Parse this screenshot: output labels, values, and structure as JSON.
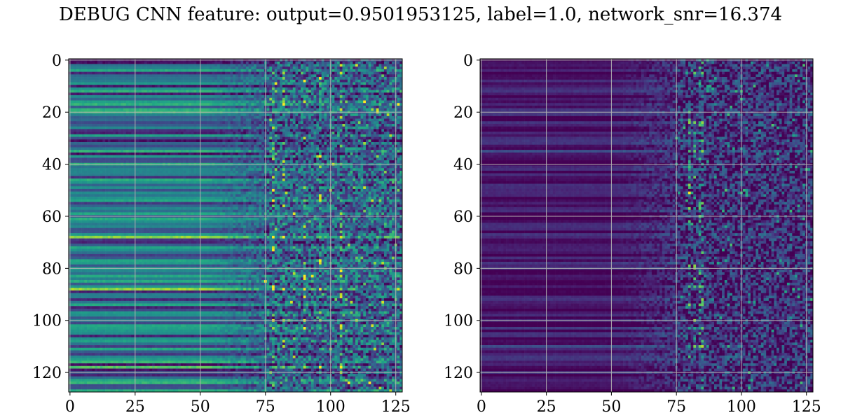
{
  "figure": {
    "title": "DEBUG CNN feature: output=0.9501953125, label=1.0, network_snr=16.374"
  },
  "chart_data": [
    {
      "type": "heatmap",
      "colormap": "viridis",
      "rows": 128,
      "cols": 128,
      "xlim": [
        -0.5,
        127.5
      ],
      "ylim": [
        127.5,
        -0.5
      ],
      "xticks": [
        0,
        25,
        50,
        75,
        100,
        125
      ],
      "yticks": [
        0,
        20,
        40,
        60,
        80,
        100,
        120
      ],
      "grid": true,
      "grid_color": "#b0b0b0",
      "structure": {
        "smooth_col_end": 50,
        "transition_col_end": 75,
        "base_level_left": 0.35,
        "base_level_right": 0.3,
        "row_contrast": 0.35,
        "noise_right": 0.35,
        "bright_rows": [
          16,
          54,
          63,
          68,
          88,
          100,
          103,
          118
        ],
        "bright_cols": [
          78,
          82,
          90,
          96,
          104
        ]
      }
    },
    {
      "type": "heatmap",
      "colormap": "viridis",
      "rows": 128,
      "cols": 128,
      "xlim": [
        -0.5,
        127.5
      ],
      "ylim": [
        127.5,
        -0.5
      ],
      "xticks": [
        0,
        25,
        50,
        75,
        100,
        125
      ],
      "yticks": [
        0,
        20,
        40,
        60,
        80,
        100,
        120
      ],
      "grid": true,
      "grid_color": "#b0b0b0",
      "structure": {
        "smooth_col_end": 50,
        "transition_col_end": 75,
        "base_level_left": 0.05,
        "base_level_right": 0.12,
        "row_contrast": 0.12,
        "noise_right": 0.3,
        "bright_rows": [
          24,
          28,
          31,
          35,
          42,
          57,
          87,
          103,
          110
        ],
        "bright_cols": [
          80,
          82,
          84,
          85
        ]
      }
    }
  ]
}
